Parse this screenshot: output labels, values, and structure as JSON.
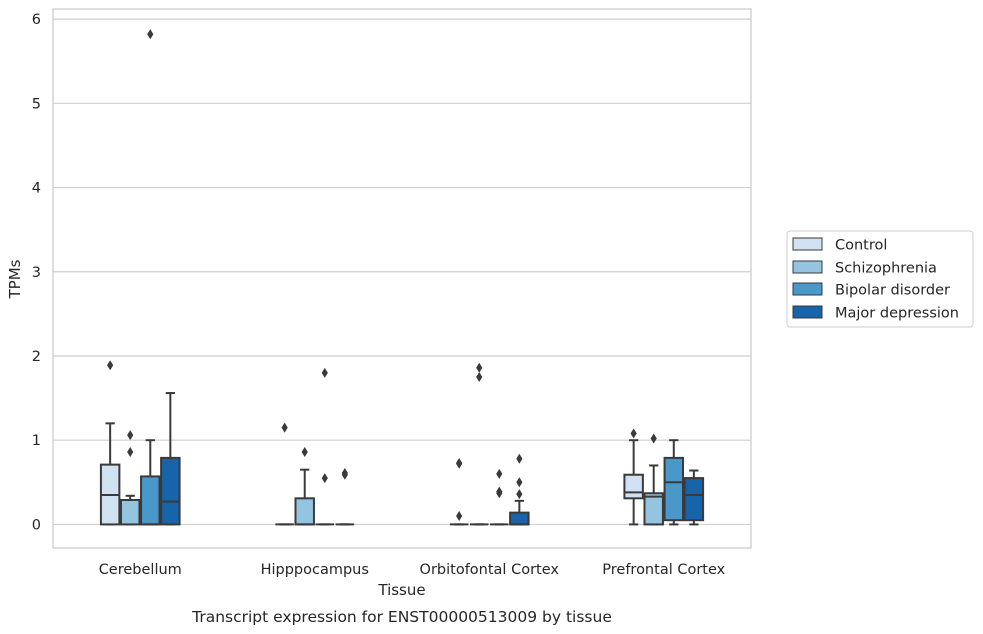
{
  "caption": "Transcript expression for ENST00000513009 by tissue",
  "colors": {
    "Control": "#d0e1f2",
    "Schizophrenia": "#94c4df",
    "Bipolar disorder": "#4a98c9",
    "Major depression": "#1764ab",
    "stroke": "#3a3a3a",
    "grid": "#cfcfcf"
  },
  "chart_data": {
    "type": "box",
    "xlabel": "Tissue",
    "ylabel": "TPMs",
    "ylim": [
      -0.28,
      6.12
    ],
    "yticks": [
      0,
      1,
      2,
      3,
      4,
      5,
      6
    ],
    "ytick_labels": [
      "0",
      "1",
      "2",
      "3",
      "4",
      "5",
      "6"
    ],
    "grid": "horizontal",
    "legend_position": "right",
    "categories": [
      "Cerebellum",
      "Hipppocampus",
      "Orbitofontal Cortex",
      "Prefrontal Cortex"
    ],
    "series": [
      {
        "name": "Control",
        "boxes": [
          {
            "whislo": 0,
            "q1": 0,
            "med": 0.35,
            "q3": 0.71,
            "whishi": 1.2,
            "fliers": [
              1.89
            ]
          },
          {
            "whislo": 0,
            "q1": 0,
            "med": 0,
            "q3": 0,
            "whishi": 0,
            "fliers": [
              1.15
            ]
          },
          {
            "whislo": 0,
            "q1": 0,
            "med": 0,
            "q3": 0,
            "whishi": 0,
            "fliers": [
              0.1,
              0.72,
              0.73
            ]
          },
          {
            "whislo": 0,
            "q1": 0.31,
            "med": 0.38,
            "q3": 0.59,
            "whishi": 1.0,
            "fliers": [
              1.08
            ]
          }
        ]
      },
      {
        "name": "Schizophrenia",
        "boxes": [
          {
            "whislo": 0,
            "q1": 0,
            "med": 0.29,
            "q3": 0.29,
            "whishi": 0.34,
            "fliers": [
              0.86,
              1.06
            ]
          },
          {
            "whislo": 0,
            "q1": 0,
            "med": 0,
            "q3": 0.31,
            "whishi": 0.65,
            "fliers": [
              0.86
            ]
          },
          {
            "whislo": 0,
            "q1": 0,
            "med": 0,
            "q3": 0,
            "whishi": 0,
            "fliers": [
              1.75,
              1.86
            ]
          },
          {
            "whislo": 0,
            "q1": 0,
            "med": 0.33,
            "q3": 0.37,
            "whishi": 0.7,
            "fliers": [
              1.02
            ]
          }
        ]
      },
      {
        "name": "Bipolar disorder",
        "boxes": [
          {
            "whislo": 0,
            "q1": 0,
            "med": 0,
            "q3": 0.57,
            "whishi": 1.0,
            "fliers": [
              5.82
            ]
          },
          {
            "whislo": 0,
            "q1": 0,
            "med": 0,
            "q3": 0,
            "whishi": 0,
            "fliers": [
              0.55,
              1.8
            ]
          },
          {
            "whislo": 0,
            "q1": 0,
            "med": 0,
            "q3": 0,
            "whishi": 0,
            "fliers": [
              0.37,
              0.39,
              0.6
            ]
          },
          {
            "whislo": 0,
            "q1": 0.05,
            "med": 0.5,
            "q3": 0.79,
            "whishi": 1.0,
            "fliers": []
          }
        ]
      },
      {
        "name": "Major depression",
        "boxes": [
          {
            "whislo": 0,
            "q1": 0,
            "med": 0.27,
            "q3": 0.79,
            "whishi": 1.56,
            "fliers": []
          },
          {
            "whislo": 0,
            "q1": 0,
            "med": 0,
            "q3": 0,
            "whishi": 0,
            "fliers": [
              0.59,
              0.61
            ]
          },
          {
            "whislo": 0,
            "q1": 0,
            "med": 0,
            "q3": 0.14,
            "whishi": 0.28,
            "fliers": [
              0.36,
              0.5,
              0.78
            ]
          },
          {
            "whislo": 0,
            "q1": 0.05,
            "med": 0.35,
            "q3": 0.55,
            "whishi": 0.64,
            "fliers": []
          }
        ]
      }
    ]
  }
}
